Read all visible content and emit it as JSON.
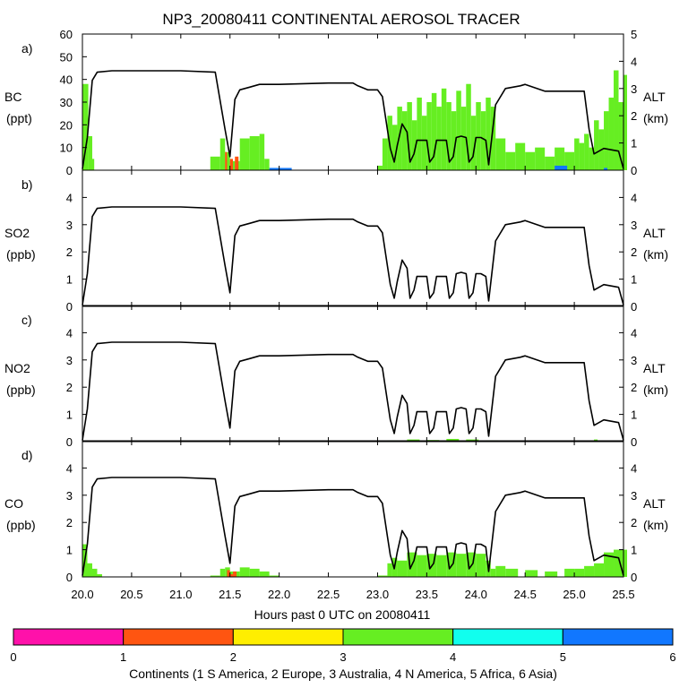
{
  "chart_data": [
    {
      "panel": "a)",
      "type": "area+line",
      "left_label": [
        "BC",
        "(ppt)"
      ],
      "right_label": [
        "ALT",
        "(km)"
      ],
      "ylim_left": [
        0,
        60
      ],
      "ylim_right": [
        0,
        5
      ],
      "left_ticks": [
        "0",
        "10",
        "20",
        "30",
        "40",
        "50",
        "60"
      ],
      "right_ticks": [
        "0",
        "1",
        "2",
        "3",
        "4",
        "5"
      ],
      "series": [
        {
          "name": "N America",
          "continent": 4,
          "x": [
            20.0,
            20.06,
            20.1,
            20.12,
            21.2,
            21.3,
            21.4,
            21.45,
            21.5,
            21.6,
            21.7,
            21.8,
            21.85,
            21.9,
            22.0,
            22.2,
            22.5,
            22.8,
            23.0,
            23.05,
            23.1,
            23.15,
            23.2,
            23.25,
            23.3,
            23.35,
            23.4,
            23.45,
            23.5,
            23.55,
            23.6,
            23.65,
            23.7,
            23.75,
            23.8,
            23.85,
            23.9,
            23.95,
            24.0,
            24.05,
            24.1,
            24.15,
            24.2,
            24.3,
            24.4,
            24.5,
            24.6,
            24.7,
            24.8,
            24.9,
            25.0,
            25.05,
            25.1,
            25.15,
            25.2,
            25.25,
            25.3,
            25.35,
            25.4,
            25.45,
            25.5
          ],
          "values": [
            38,
            15,
            5,
            0,
            0,
            6,
            14,
            8,
            4,
            14,
            15,
            16,
            5,
            1,
            0,
            0,
            0,
            0,
            2,
            14,
            24,
            20,
            28,
            26,
            30,
            22,
            32,
            24,
            30,
            34,
            28,
            36,
            30,
            26,
            35,
            28,
            38,
            24,
            30,
            26,
            32,
            28,
            14,
            8,
            12,
            8,
            10,
            6,
            10,
            8,
            14,
            12,
            16,
            10,
            22,
            18,
            26,
            32,
            44,
            30,
            42
          ]
        },
        {
          "name": "Europe",
          "continent": 2,
          "x": [
            21.45,
            21.47,
            21.5,
            21.53,
            21.55
          ],
          "values": [
            8,
            0,
            5,
            0,
            6
          ]
        },
        {
          "name": "Asia",
          "continent": 6,
          "x": [
            21.9,
            22.0,
            24.8,
            25.3
          ],
          "values": [
            1,
            1,
            2,
            1
          ]
        }
      ],
      "altitude_km": {
        "x": [
          20.0,
          20.05,
          20.1,
          20.15,
          20.3,
          21.0,
          21.35,
          21.45,
          21.5,
          21.55,
          21.6,
          21.7,
          21.8,
          22.0,
          22.5,
          22.75,
          22.8,
          22.9,
          22.95,
          23.0,
          23.05,
          23.1,
          23.13,
          23.17,
          23.2,
          23.25,
          23.3,
          23.33,
          23.37,
          23.4,
          23.45,
          23.5,
          23.53,
          23.57,
          23.6,
          23.65,
          23.7,
          23.73,
          23.77,
          23.8,
          23.85,
          23.9,
          23.93,
          23.97,
          24.0,
          24.05,
          24.1,
          24.13,
          24.2,
          24.3,
          24.45,
          24.5,
          24.7,
          24.9,
          25.1,
          25.15,
          25.2,
          25.3,
          25.45,
          25.5
        ],
        "y": [
          0.05,
          1.2,
          3.3,
          3.6,
          3.65,
          3.65,
          3.6,
          1.5,
          0.5,
          2.6,
          2.95,
          3.05,
          3.15,
          3.15,
          3.2,
          3.2,
          3.1,
          2.95,
          2.95,
          2.95,
          2.7,
          1.5,
          0.8,
          0.3,
          0.9,
          1.7,
          1.4,
          0.3,
          0.6,
          1.1,
          1.1,
          1.1,
          0.3,
          0.5,
          1.1,
          1.1,
          1.1,
          0.3,
          0.5,
          1.2,
          1.25,
          1.2,
          0.3,
          0.5,
          1.2,
          1.2,
          1.1,
          0.2,
          2.4,
          3.0,
          3.1,
          3.15,
          2.9,
          2.9,
          2.9,
          1.5,
          0.6,
          0.8,
          0.7,
          0.05
        ]
      }
    },
    {
      "panel": "b)",
      "type": "area+line",
      "left_label": [
        "SO2",
        "(ppb)"
      ],
      "right_label": [
        "ALT",
        "(km)"
      ],
      "ylim_left": [
        0,
        5
      ],
      "ylim_right": [
        0,
        5
      ],
      "left_ticks": [
        "0",
        "1",
        "2",
        "3",
        "4"
      ],
      "right_ticks": [
        "0",
        "1",
        "2",
        "3",
        "4"
      ],
      "series": [],
      "altitude_km": "same"
    },
    {
      "panel": "c)",
      "type": "area+line",
      "left_label": [
        "NO2",
        "(ppb)"
      ],
      "right_label": [
        "ALT",
        "(km)"
      ],
      "ylim_left": [
        0,
        5
      ],
      "ylim_right": [
        0,
        5
      ],
      "left_ticks": [
        "0",
        "1",
        "2",
        "3",
        "4"
      ],
      "right_ticks": [
        "0",
        "1",
        "2",
        "3",
        "4"
      ],
      "series": [
        {
          "name": "N America",
          "continent": 4,
          "x": [
            23.1,
            23.3,
            23.5,
            23.7,
            23.9,
            24.1,
            25.2
          ],
          "values": [
            0.05,
            0.08,
            0.06,
            0.1,
            0.08,
            0.05,
            0.08
          ]
        }
      ],
      "altitude_km": "same"
    },
    {
      "panel": "d)",
      "type": "area+line",
      "left_label": [
        "CO",
        "(ppb)"
      ],
      "right_label": [
        "ALT",
        "(km)"
      ],
      "ylim_left": [
        0,
        5
      ],
      "ylim_right": [
        0,
        5
      ],
      "left_ticks": [
        "0",
        "1",
        "2",
        "3",
        "4"
      ],
      "right_ticks": [
        "0",
        "1",
        "2",
        "3",
        "4"
      ],
      "series": [
        {
          "name": "N America",
          "continent": 4,
          "x": [
            20.0,
            20.05,
            20.1,
            20.15,
            20.2,
            21.3,
            21.4,
            21.45,
            21.5,
            21.6,
            21.7,
            21.8,
            21.9,
            22.0,
            22.5,
            23.0,
            23.1,
            23.15,
            23.2,
            23.3,
            23.4,
            23.5,
            23.6,
            23.7,
            23.8,
            23.9,
            24.0,
            24.1,
            24.15,
            24.2,
            24.3,
            24.5,
            24.7,
            24.9,
            25.0,
            25.1,
            25.2,
            25.3,
            25.4,
            25.5
          ],
          "values": [
            1.2,
            0.5,
            0.3,
            0.1,
            0,
            0.05,
            0.3,
            0.35,
            0.2,
            0.35,
            0.3,
            0.2,
            0.05,
            0,
            0,
            0.05,
            0.5,
            0.7,
            0.6,
            0.9,
            0.8,
            0.85,
            0.8,
            0.9,
            0.85,
            0.9,
            0.85,
            0.6,
            0.3,
            0.4,
            0.3,
            0.25,
            0.2,
            0.3,
            0.3,
            0.4,
            0.5,
            0.9,
            1.0,
            1.0
          ]
        },
        {
          "name": "Europe",
          "continent": 2,
          "x": [
            21.47,
            21.5,
            21.53
          ],
          "values": [
            0.25,
            0.1,
            0.2
          ]
        }
      ],
      "altitude_km": "same"
    }
  ],
  "figure": {
    "title": "NP3_20080411 CONTINENTAL AEROSOL TRACER",
    "xlabel": "Hours past 0 UTC on 20080411",
    "xlim": [
      20.0,
      25.5
    ],
    "x_ticks": [
      "20.0",
      "20.5",
      "21.0",
      "21.5",
      "22.0",
      "22.5",
      "23.0",
      "23.5",
      "24.0",
      "24.5",
      "25.0",
      "25.5"
    ],
    "colorbar": {
      "ticks": [
        "0",
        "1",
        "2",
        "3",
        "4",
        "5",
        "6"
      ],
      "colors": [
        "#ff11aa",
        "#ff5511",
        "#ffee00",
        "#66ee22",
        "#11ffee",
        "#1177ff"
      ],
      "label": "Continents (1 S America, 2 Europe, 3 Australia, 4 N America, 5 Africa, 6 Asia)"
    },
    "continent_colors": {
      "2": "#ff5511",
      "4": "#66ee22",
      "6": "#1177ff"
    }
  }
}
